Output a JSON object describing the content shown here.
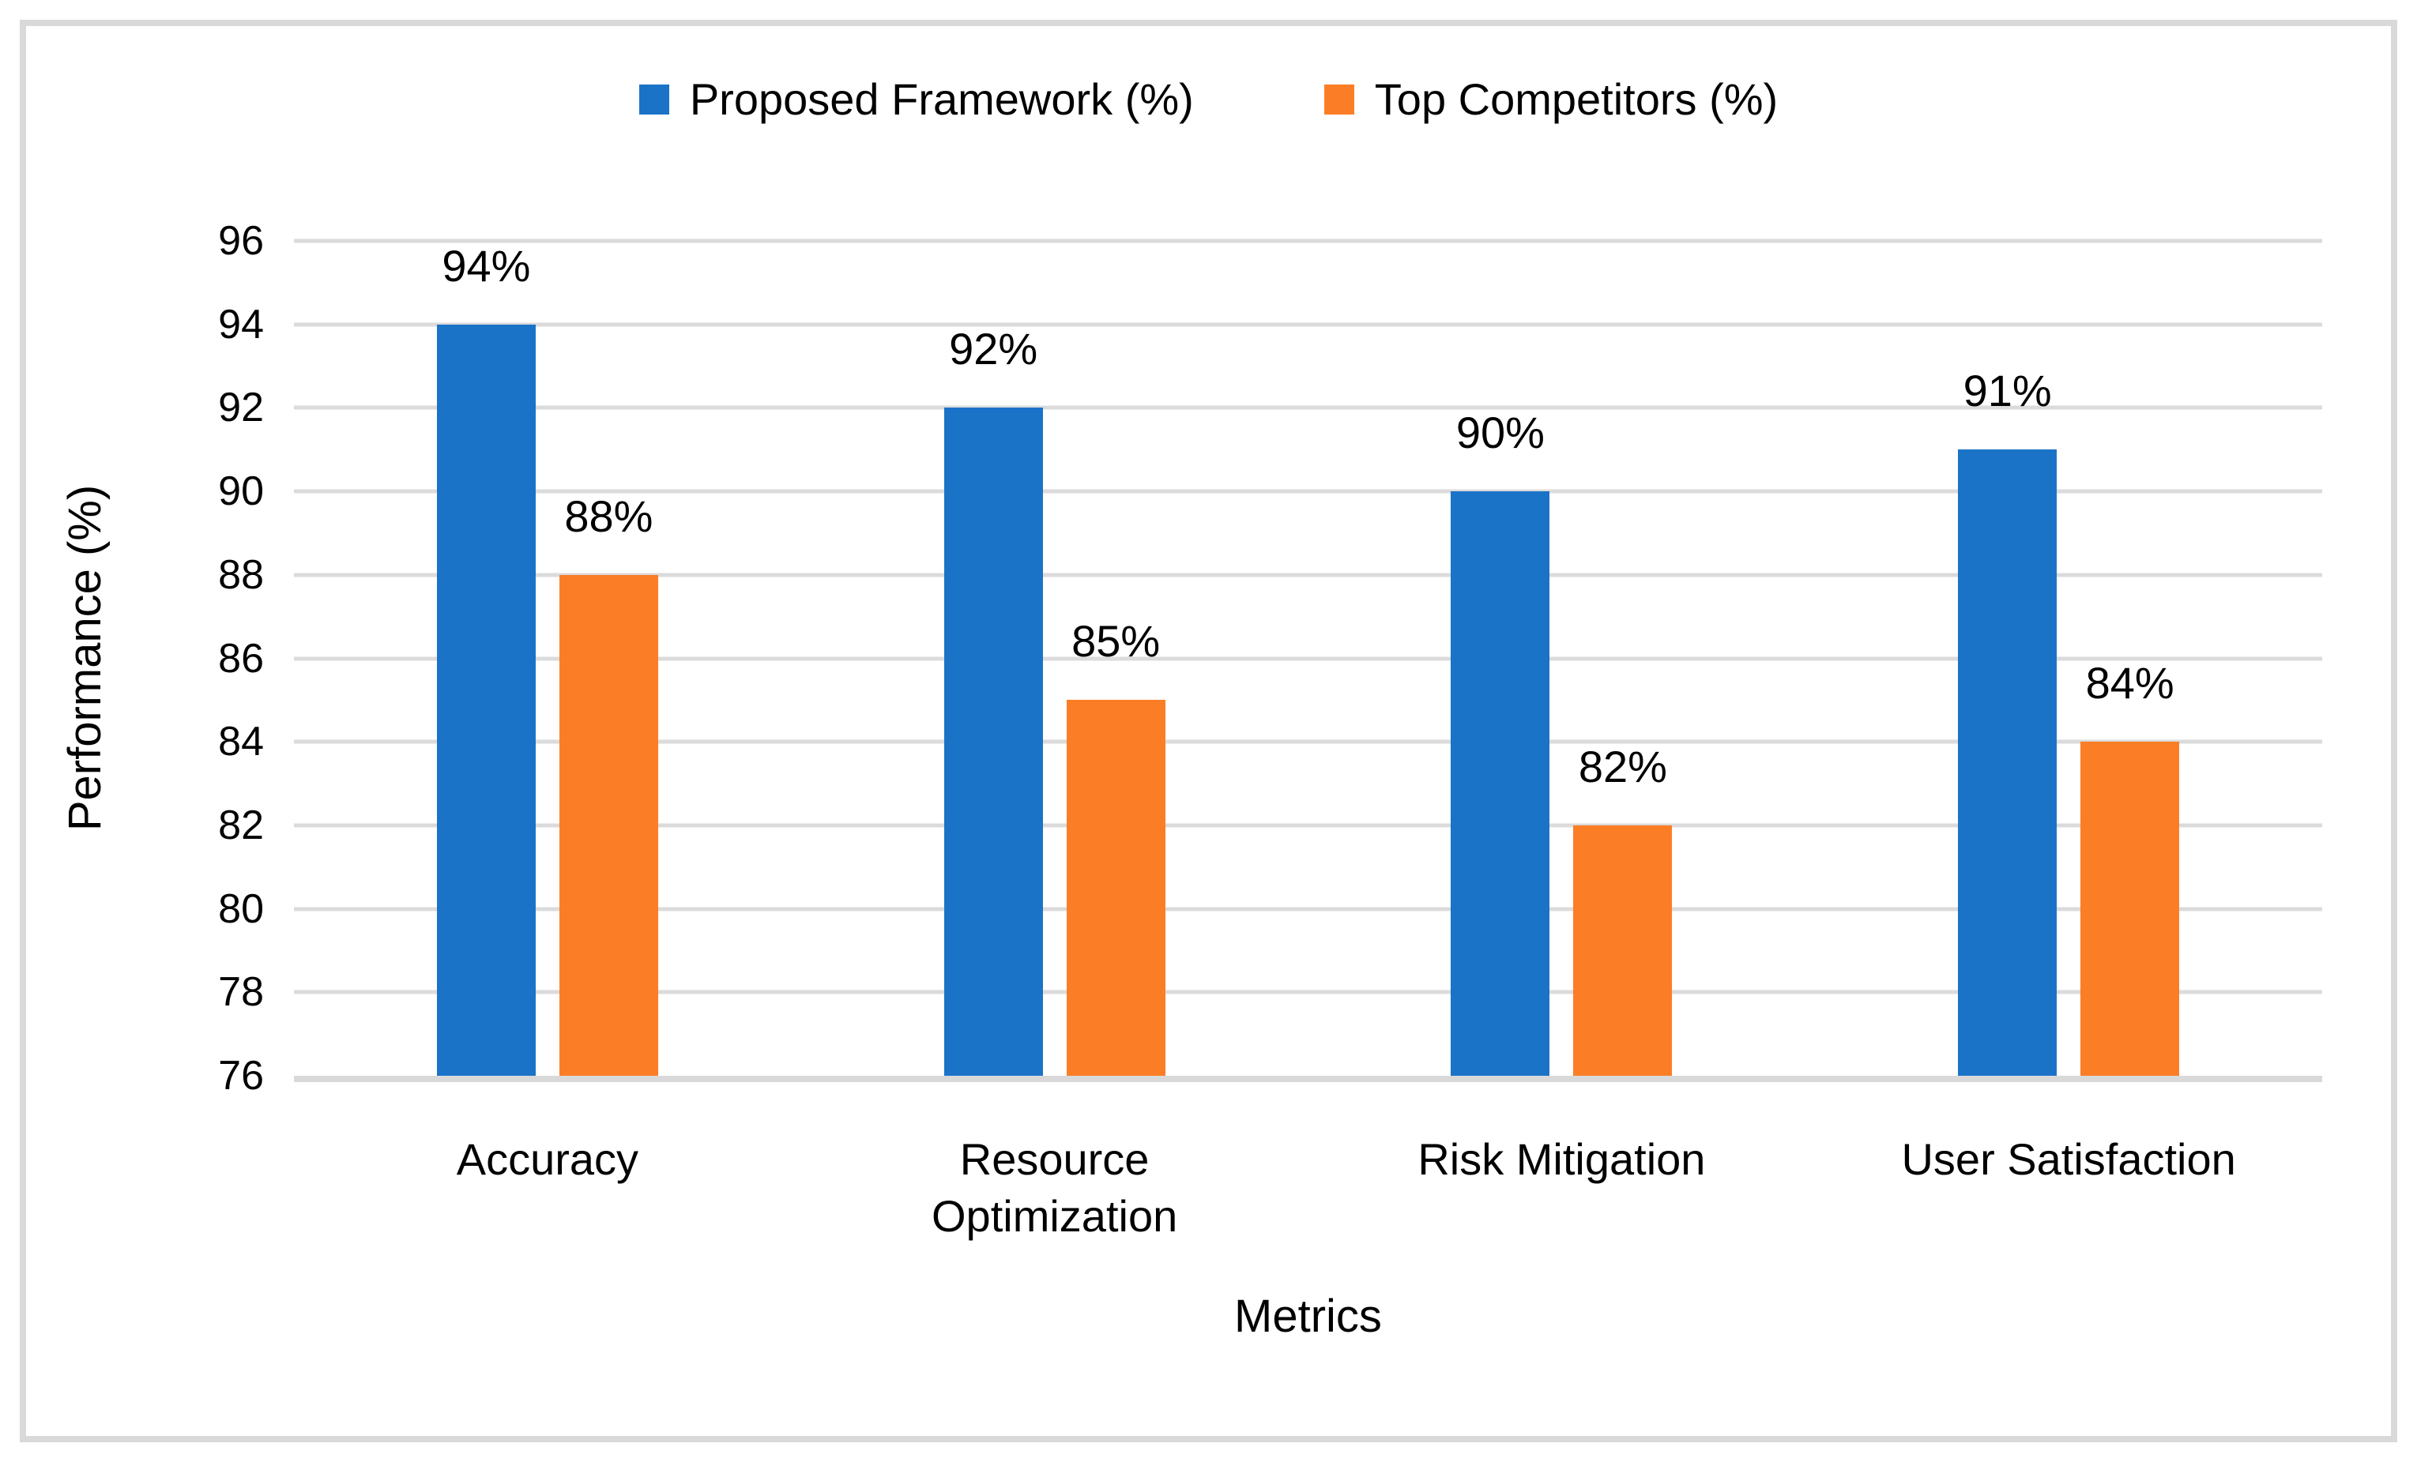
{
  "figure": {
    "background": "#FFFFFF",
    "border_color": "#D9D9D9",
    "gridline_color": "#D9D9D9",
    "text_color": "#000000"
  },
  "chart_data": {
    "type": "bar",
    "title": "",
    "xlabel": "Metrics",
    "ylabel": "Performance (%)",
    "categories": [
      "Accuracy",
      "Resource Optimization",
      "Risk Mitigation",
      "User Satisfaction"
    ],
    "series": [
      {
        "name": "Proposed Framework (%)",
        "color": "#1B73C8",
        "values": [
          94,
          92,
          90,
          91
        ],
        "labels": [
          "94%",
          "92%",
          "90%",
          "91%"
        ]
      },
      {
        "name": "Top Competitors (%)",
        "color": "#FB7E26",
        "values": [
          88,
          85,
          82,
          84
        ],
        "labels": [
          "88%",
          "85%",
          "82%",
          "84%"
        ]
      }
    ],
    "ylim": [
      76,
      96
    ],
    "yticks": [
      76,
      78,
      80,
      82,
      84,
      86,
      88,
      90,
      92,
      94,
      96
    ],
    "grid": true,
    "legend_position": "top"
  }
}
